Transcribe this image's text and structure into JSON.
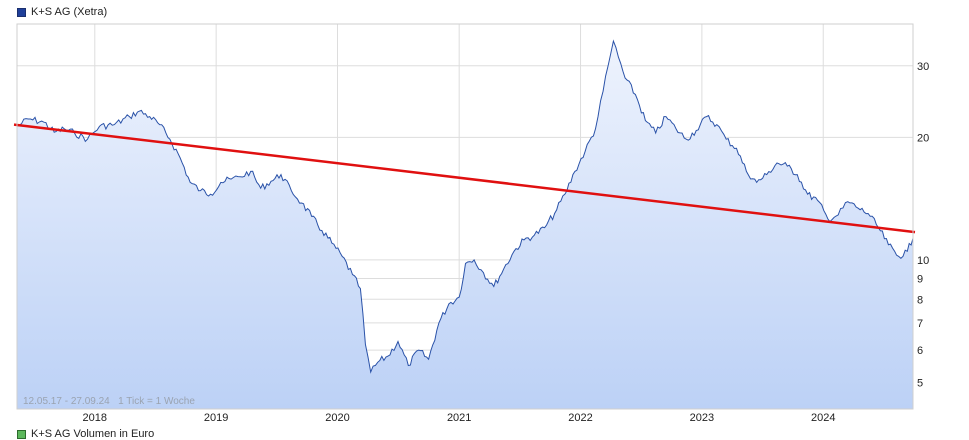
{
  "legend": {
    "label": "K+S AG (Xetra)",
    "color": "#1f3f99"
  },
  "legend_volume": {
    "label": "K+S AG Volumen in Euro",
    "color": "#5cb85c"
  },
  "range_label": "12.05.17 - 27.09.24",
  "tick_label": "1 Tick = 1 Woche",
  "colors": {
    "line": "#2a52a8",
    "fill_top": "#eef3fd",
    "fill_bottom": "#bcd1f6",
    "trend": "#e01010",
    "grid": "#dddddd"
  },
  "chart_data": {
    "type": "line",
    "title": "K+S AG (Xetra)",
    "x_axis": {
      "type": "date",
      "range": [
        "2017-05-12",
        "2024-09-27"
      ],
      "tick_labels": [
        "2018",
        "2019",
        "2020",
        "2021",
        "2022",
        "2023",
        "2024"
      ]
    },
    "y_axis": {
      "scale": "log",
      "range": [
        4.3,
        38
      ],
      "tick_labels": [
        "5",
        "6",
        "7",
        "8",
        "9",
        "10",
        "20",
        "30"
      ],
      "ticks": [
        5,
        6,
        7,
        8,
        9,
        10,
        20,
        30
      ]
    },
    "grid": true,
    "series": [
      {
        "name": "K+S AG (Xetra)",
        "points": [
          [
            "2017-05-12",
            21.3
          ],
          [
            "2017-06-15",
            22.2
          ],
          [
            "2017-08-01",
            21.8
          ],
          [
            "2017-09-01",
            20.6
          ],
          [
            "2017-10-01",
            21.0
          ],
          [
            "2017-11-01",
            20.5
          ],
          [
            "2017-12-10",
            19.8
          ],
          [
            "2018-01-15",
            21.3
          ],
          [
            "2018-03-01",
            21.5
          ],
          [
            "2018-04-15",
            22.5
          ],
          [
            "2018-05-15",
            23.2
          ],
          [
            "2018-06-15",
            22.5
          ],
          [
            "2018-07-15",
            21.5
          ],
          [
            "2018-08-15",
            19.8
          ],
          [
            "2018-09-15",
            17.8
          ],
          [
            "2018-10-15",
            15.5
          ],
          [
            "2018-11-15",
            14.8
          ],
          [
            "2018-12-15",
            14.5
          ],
          [
            "2019-01-15",
            15.5
          ],
          [
            "2019-02-15",
            15.8
          ],
          [
            "2019-03-15",
            16.0
          ],
          [
            "2019-04-15",
            16.5
          ],
          [
            "2019-05-15",
            15.0
          ],
          [
            "2019-06-15",
            15.6
          ],
          [
            "2019-07-15",
            16.2
          ],
          [
            "2019-08-15",
            14.8
          ],
          [
            "2019-09-15",
            13.8
          ],
          [
            "2019-10-15",
            12.8
          ],
          [
            "2019-11-15",
            11.8
          ],
          [
            "2019-12-15",
            11.0
          ],
          [
            "2020-01-15",
            10.2
          ],
          [
            "2020-02-15",
            9.2
          ],
          [
            "2020-03-10",
            8.5
          ],
          [
            "2020-03-25",
            6.2
          ],
          [
            "2020-04-10",
            5.3
          ],
          [
            "2020-05-01",
            5.6
          ],
          [
            "2020-06-01",
            5.8
          ],
          [
            "2020-07-01",
            6.3
          ],
          [
            "2020-08-01",
            5.5
          ],
          [
            "2020-09-01",
            6.0
          ],
          [
            "2020-10-01",
            5.7
          ],
          [
            "2020-11-01",
            7.0
          ],
          [
            "2020-12-01",
            7.8
          ],
          [
            "2021-01-01",
            8.1
          ],
          [
            "2021-01-20",
            9.8
          ],
          [
            "2021-02-15",
            10.0
          ],
          [
            "2021-03-15",
            9.3
          ],
          [
            "2021-04-15",
            8.6
          ],
          [
            "2021-05-15",
            9.5
          ],
          [
            "2021-06-15",
            10.5
          ],
          [
            "2021-07-15",
            11.2
          ],
          [
            "2021-08-15",
            11.5
          ],
          [
            "2021-09-15",
            12.0
          ],
          [
            "2021-10-15",
            13.0
          ],
          [
            "2021-11-15",
            14.5
          ],
          [
            "2021-12-15",
            16.5
          ],
          [
            "2022-01-15",
            18.5
          ],
          [
            "2022-02-15",
            21.0
          ],
          [
            "2022-03-10",
            26.0
          ],
          [
            "2022-03-25",
            30.0
          ],
          [
            "2022-04-10",
            34.5
          ],
          [
            "2022-04-25",
            31.5
          ],
          [
            "2022-05-15",
            28.0
          ],
          [
            "2022-06-15",
            25.5
          ],
          [
            "2022-07-15",
            22.0
          ],
          [
            "2022-08-15",
            20.5
          ],
          [
            "2022-09-15",
            22.5
          ],
          [
            "2022-10-15",
            21.0
          ],
          [
            "2022-11-15",
            19.8
          ],
          [
            "2022-12-15",
            20.8
          ],
          [
            "2023-01-15",
            22.5
          ],
          [
            "2023-02-15",
            21.5
          ],
          [
            "2023-03-15",
            19.8
          ],
          [
            "2023-04-15",
            18.8
          ],
          [
            "2023-05-15",
            16.5
          ],
          [
            "2023-06-15",
            15.5
          ],
          [
            "2023-07-15",
            16.2
          ],
          [
            "2023-08-15",
            17.3
          ],
          [
            "2023-09-15",
            17.0
          ],
          [
            "2023-10-15",
            16.2
          ],
          [
            "2023-11-15",
            14.5
          ],
          [
            "2023-12-15",
            14.0
          ],
          [
            "2024-01-15",
            12.6
          ],
          [
            "2024-02-15",
            12.9
          ],
          [
            "2024-03-15",
            13.9
          ],
          [
            "2024-04-15",
            13.4
          ],
          [
            "2024-05-15",
            13.0
          ],
          [
            "2024-06-15",
            12.0
          ],
          [
            "2024-07-15",
            10.9
          ],
          [
            "2024-08-15",
            10.2
          ],
          [
            "2024-09-10",
            10.5
          ],
          [
            "2024-09-27",
            11.3
          ]
        ]
      },
      {
        "name": "trend",
        "points": [
          [
            "2017-05-12",
            21.5
          ],
          [
            "2024-09-27",
            11.7
          ]
        ]
      }
    ]
  }
}
